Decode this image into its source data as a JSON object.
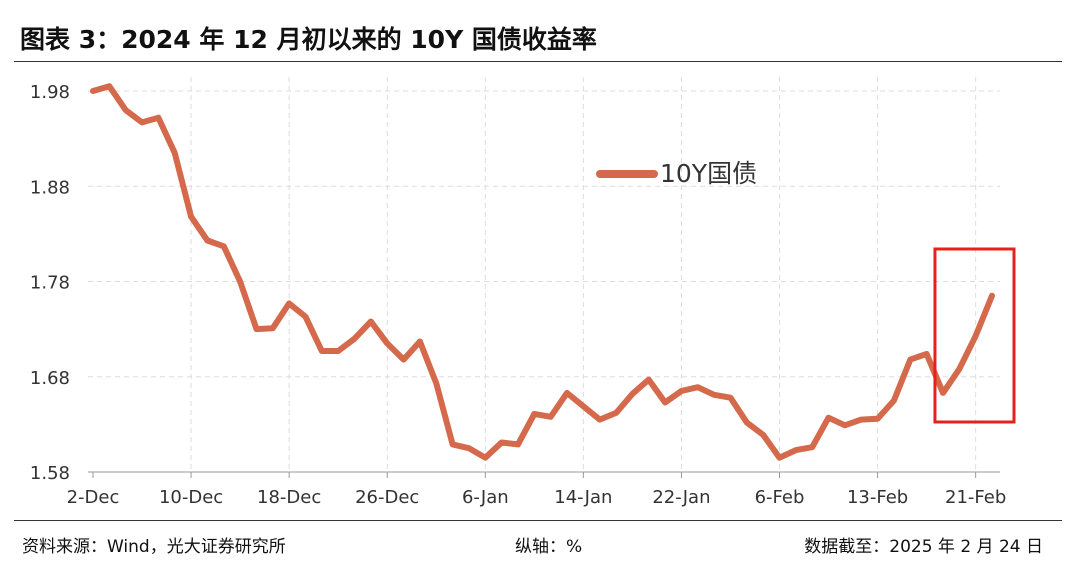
{
  "header": {
    "title": "图表 3：2024 年 12 月初以来的 10Y 国债收益率"
  },
  "footer": {
    "source": "资料来源：Wind，光大证券研究所",
    "axis_unit": "纵轴：%",
    "date_note": "数据截至：2025 年 2 月 24 日"
  },
  "colors": {
    "series": "#d4694b",
    "highlight_box": "#e8201c",
    "grid": "#dddddd"
  },
  "chart_data": {
    "type": "line",
    "title": "",
    "xlabel": "",
    "ylabel": "",
    "ylim": [
      1.58,
      1.98
    ],
    "yticks": [
      "1.98",
      "1.88",
      "1.78",
      "1.68",
      "1.58"
    ],
    "xtick_labels": [
      "2-Dec",
      "10-Dec",
      "18-Dec",
      "26-Dec",
      "6-Jan",
      "14-Jan",
      "22-Jan",
      "6-Feb",
      "13-Feb",
      "21-Feb"
    ],
    "xtick_indices": [
      0,
      6,
      12,
      18,
      24,
      30,
      36,
      42,
      48,
      54
    ],
    "grid": true,
    "legend_position": "center",
    "series": [
      {
        "name": "10Y国债",
        "values": [
          1.98,
          1.985,
          1.96,
          1.947,
          1.952,
          1.915,
          1.848,
          1.823,
          1.817,
          1.78,
          1.73,
          1.731,
          1.757,
          1.743,
          1.707,
          1.707,
          1.72,
          1.738,
          1.715,
          1.698,
          1.717,
          1.673,
          1.609,
          1.605,
          1.595,
          1.611,
          1.609,
          1.641,
          1.638,
          1.663,
          1.649,
          1.635,
          1.642,
          1.662,
          1.677,
          1.653,
          1.665,
          1.669,
          1.661,
          1.658,
          1.632,
          1.619,
          1.595,
          1.603,
          1.606,
          1.637,
          1.629,
          1.635,
          1.636,
          1.655,
          1.698,
          1.704,
          1.663,
          1.688,
          1.723,
          1.765
        ]
      }
    ],
    "highlight": {
      "start_index": 52,
      "end_index": 55
    }
  }
}
